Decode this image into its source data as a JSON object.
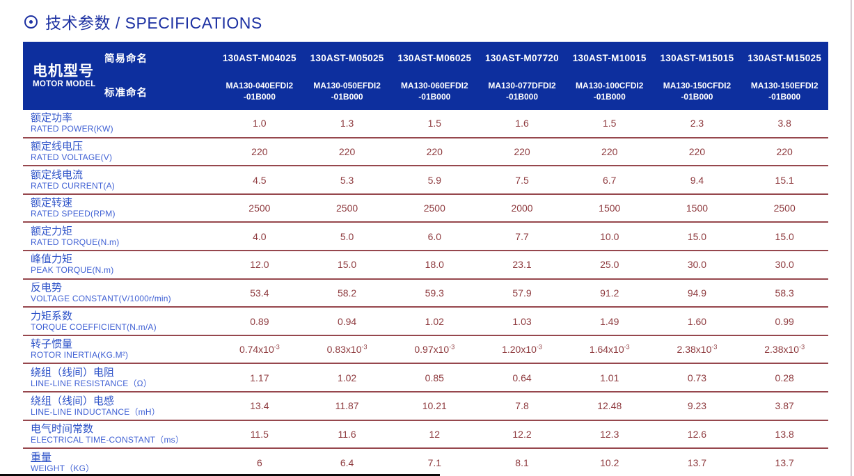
{
  "title": {
    "icon": "circled-dot",
    "text": "技术参数 / SPECIFICATIONS"
  },
  "colors": {
    "header_bg": "#0d2f9e",
    "title_color": "#1d31a2",
    "label_zh": "#2d52c8",
    "label_en": "#4061d4",
    "value_color": "#8e3a3e",
    "separator": "#96474d",
    "edge_line": "#d7ced4"
  },
  "table": {
    "header": {
      "model_label_zh": "电机型号",
      "model_label_en": "MOTOR MODEL",
      "row1_label": "简易命名",
      "row2_label": "标准命名",
      "models": [
        {
          "simple": "130AST-M04025",
          "standard": [
            "MA130-040EFDI2",
            "-01B000"
          ]
        },
        {
          "simple": "130AST-M05025",
          "standard": [
            "MA130-050EFDI2",
            "-01B000"
          ]
        },
        {
          "simple": "130AST-M06025",
          "standard": [
            "MA130-060EFDI2",
            "-01B000"
          ]
        },
        {
          "simple": "130AST-M07720",
          "standard": [
            "MA130-077DFDI2",
            "-01B000"
          ]
        },
        {
          "simple": "130AST-M10015",
          "standard": [
            "MA130-100CFDI2",
            "-01B000"
          ]
        },
        {
          "simple": "130AST-M15015",
          "standard": [
            "MA130-150CFDI2",
            "-01B000"
          ]
        },
        {
          "simple": "130AST-M15025",
          "standard": [
            "MA130-150EFDI2",
            "-01B000"
          ]
        }
      ]
    },
    "rows": [
      {
        "label_zh": "额定功率",
        "label_en": "RATED POWER(KW)",
        "values": [
          "1.0",
          "1.3",
          "1.5",
          "1.6",
          "1.5",
          "2.3",
          "3.8"
        ]
      },
      {
        "label_zh": "额定线电压",
        "label_en": "RATED VOLTAGE(V)",
        "values": [
          "220",
          "220",
          "220",
          "220",
          "220",
          "220",
          "220"
        ]
      },
      {
        "label_zh": "额定线电流",
        "label_en": "RATED CURRENT(A)",
        "values": [
          "4.5",
          "5.3",
          "5.9",
          "7.5",
          "6.7",
          "9.4",
          "15.1"
        ]
      },
      {
        "label_zh": "额定转速",
        "label_en": "RATED SPEED(RPM)",
        "values": [
          "2500",
          "2500",
          "2500",
          "2000",
          "1500",
          "1500",
          "2500"
        ]
      },
      {
        "label_zh": "额定力矩",
        "label_en": "RATED TORQUE(N.m)",
        "values": [
          "4.0",
          "5.0",
          "6.0",
          "7.7",
          "10.0",
          "15.0",
          "15.0"
        ]
      },
      {
        "label_zh": "峰值力矩",
        "label_en": "PEAK TORQUE(N.m)",
        "values": [
          "12.0",
          "15.0",
          "18.0",
          "23.1",
          "25.0",
          "30.0",
          "30.0"
        ]
      },
      {
        "label_zh": "反电势",
        "label_en": "VOLTAGE CONSTANT(V/1000r/min)",
        "values": [
          "53.4",
          "58.2",
          "59.3",
          "57.9",
          "91.2",
          "94.9",
          "58.3"
        ]
      },
      {
        "label_zh": "力矩系数",
        "label_en": "TORQUE COEFFICIENT(N.m/A)",
        "values": [
          "0.89",
          "0.94",
          "1.02",
          "1.03",
          "1.49",
          "1.60",
          "0.99"
        ]
      },
      {
        "label_zh": "转子惯量",
        "label_en": "ROTOR INERTIA(KG.M²)",
        "values": [
          "0.74x10^-3",
          "0.83x10^-3",
          "0.97x10^-3",
          "1.20x10^-3",
          "1.64x10^-3",
          "2.38x10^-3",
          "2.38x10^-3"
        ]
      },
      {
        "label_zh": "绕组（线间）电阻",
        "label_en": "LINE-LINE RESISTANCE（Ω）",
        "values": [
          "1.17",
          "1.02",
          "0.85",
          "0.64",
          "1.01",
          "0.73",
          "0.28"
        ]
      },
      {
        "label_zh": "绕组（线间）电感",
        "label_en": "LINE-LINE INDUCTANCE（mH）",
        "values": [
          "13.4",
          "11.87",
          "10.21",
          "7.8",
          "12.48",
          "9.23",
          "3.87"
        ]
      },
      {
        "label_zh": "电气时间常数",
        "label_en": "ELECTRICAL TIME-CONSTANT（ms）",
        "values": [
          "11.5",
          "11.6",
          "12",
          "12.2",
          "12.3",
          "12.6",
          "13.8"
        ]
      },
      {
        "label_zh": "重量",
        "label_en": "WEIGHT（KG）",
        "values": [
          "6",
          "6.4",
          "7.1",
          "8.1",
          "10.2",
          "13.7",
          "13.7"
        ],
        "underline_zh": true
      }
    ]
  }
}
